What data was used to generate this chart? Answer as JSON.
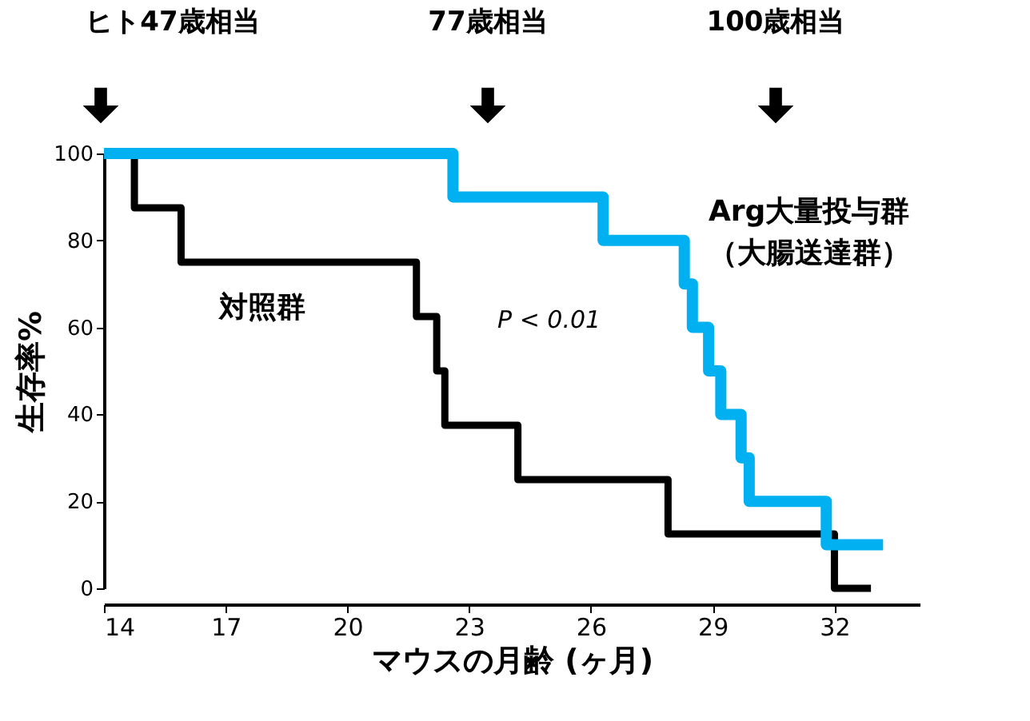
{
  "chart_data": {
    "type": "step",
    "xlabel": "マウスの月齢 (ヶ月)",
    "ylabel": "生存率%",
    "xlim": [
      14,
      34.1
    ],
    "xticks": [
      14,
      17,
      20,
      23,
      26,
      29,
      32
    ],
    "ylim": [
      0,
      100
    ],
    "yticks": [
      0,
      20,
      40,
      60,
      80,
      100
    ],
    "grid": false,
    "legend": false,
    "marker": "none",
    "line_style": "solid",
    "series": [
      {
        "name": "対照群",
        "color": "#000000",
        "x": [
          14,
          14.75,
          15.9,
          21.7,
          22.2,
          22.4,
          24.2,
          27.9,
          32.0,
          32.9
        ],
        "values": [
          100,
          87.5,
          75,
          62.5,
          50,
          37.5,
          25,
          12.5,
          0,
          0
        ]
      },
      {
        "name": "Arg大量投与群（大腸送達群）",
        "color": "#00b0f0",
        "x": [
          14,
          22.6,
          26.3,
          28.3,
          28.5,
          28.9,
          29.2,
          29.7,
          29.9,
          31.8,
          33.2
        ],
        "values": [
          100,
          90,
          80,
          70,
          60,
          50,
          40,
          30,
          20,
          10,
          10
        ]
      }
    ],
    "annotations": [
      "ヒト47歳相当",
      "77歳相当",
      "100歳相当",
      "P < 0.01"
    ]
  }
}
